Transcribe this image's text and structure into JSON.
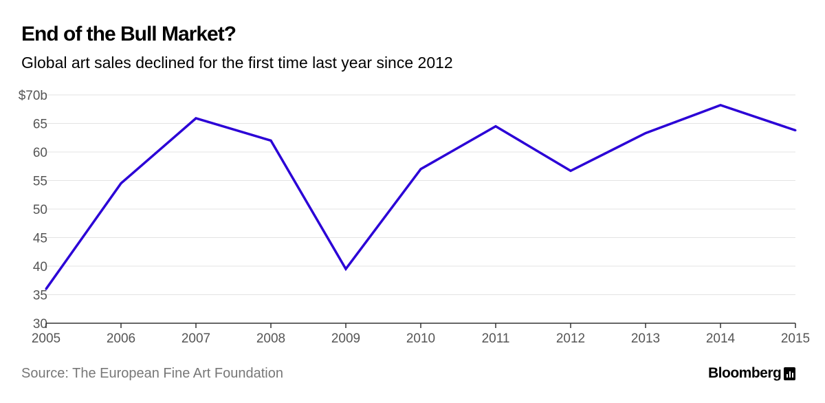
{
  "header": {
    "title": "End of the Bull Market?",
    "subtitle": "Global art sales declined for the first time last year since 2012"
  },
  "footer": {
    "source": "Source: The European Fine Art Foundation",
    "brand": "Bloomberg",
    "brand_icon": "bloomberg-chart-icon"
  },
  "chart_data": {
    "type": "line",
    "title": "End of the Bull Market?",
    "subtitle": "Global art sales declined for the first time last year since 2012",
    "x": [
      2005,
      2006,
      2007,
      2008,
      2009,
      2010,
      2011,
      2012,
      2013,
      2014,
      2015
    ],
    "series": [
      {
        "values": [
          36.0,
          54.5,
          65.9,
          62.0,
          39.5,
          57.0,
          64.5,
          56.7,
          63.3,
          68.2,
          63.8
        ],
        "color": "#2b00d6"
      }
    ],
    "ylim": [
      30,
      70
    ],
    "yticks": [
      30,
      35,
      40,
      45,
      50,
      55,
      60,
      65,
      70
    ],
    "ytick_labels": [
      "30",
      "35",
      "40",
      "45",
      "50",
      "55",
      "60",
      "65",
      "$70b"
    ],
    "xtick_labels": [
      "2005",
      "2006",
      "2007",
      "2008",
      "2009",
      "2010",
      "2011",
      "2012",
      "2013",
      "2014",
      "2015"
    ],
    "xlim": [
      2005,
      2015
    ],
    "grid": true,
    "xlabel": "",
    "ylabel": ""
  }
}
